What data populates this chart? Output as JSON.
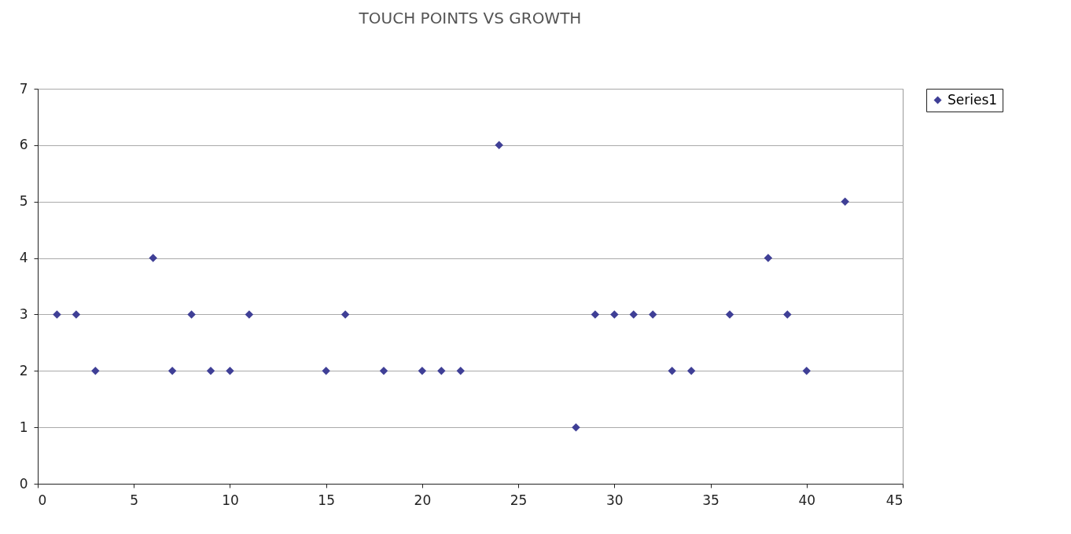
{
  "chart_data": {
    "type": "scatter",
    "title": "TOUCH POINTS VS GROWTH",
    "x": [
      1,
      2,
      3,
      6,
      7,
      8,
      9,
      10,
      11,
      15,
      16,
      18,
      20,
      21,
      22,
      24,
      28,
      29,
      30,
      31,
      32,
      33,
      34,
      36,
      38,
      39,
      40,
      42
    ],
    "series": [
      {
        "name": "Series1",
        "color": "#3f3f96",
        "values": [
          3,
          3,
          2,
          4,
          2,
          3,
          2,
          2,
          3,
          2,
          3,
          2,
          2,
          2,
          2,
          6,
          1,
          3,
          3,
          3,
          3,
          2,
          2,
          3,
          4,
          3,
          2,
          5
        ]
      }
    ],
    "xlim": [
      0,
      45
    ],
    "xticks": [
      0,
      5,
      10,
      15,
      20,
      25,
      30,
      35,
      40,
      45
    ],
    "ylim": [
      0,
      7
    ],
    "yticks": [
      0,
      1,
      2,
      3,
      4,
      5,
      6,
      7
    ],
    "grid": "y",
    "legend": "right",
    "marker": "diamond"
  }
}
